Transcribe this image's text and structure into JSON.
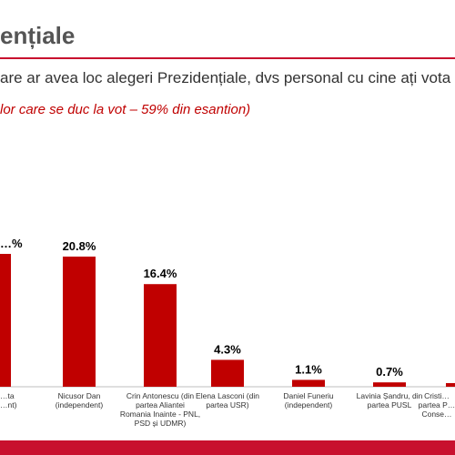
{
  "header": {
    "title": "ențiale",
    "question": "are ar avea loc alegeri Prezidențiale, dvs personal cu cine ați vota",
    "subtitle": "lor care se duc la vot – 59% din esantion)"
  },
  "colors": {
    "accent": "#c8102e",
    "bar": "#c00000",
    "title_text": "#555555"
  },
  "chart_data": {
    "type": "bar",
    "categories": [
      "…ta\n…nt)",
      "Nicusor Dan\n(independent)",
      "Crin Antonescu (din\npartea Aliantei\nRomania Inainte - PNL,\nPSD și UDMR)",
      "Elena Lasconi (din\npartea USR)",
      "Daniel Funeriu\n(independent)",
      "Lavinia Șandru, din\npartea PUSL",
      "Cristi…\npartea P…\nConse…"
    ],
    "values": [
      null,
      20.8,
      16.4,
      4.3,
      1.1,
      0.7,
      null
    ],
    "data_labels": [
      "…%",
      "20.8%",
      "16.4%",
      "4.3%",
      "1.1%",
      "0.7%",
      ""
    ],
    "title": "",
    "xlabel": "",
    "ylabel": "",
    "ylim": [
      0,
      25
    ],
    "grid": false,
    "legend": "none"
  }
}
